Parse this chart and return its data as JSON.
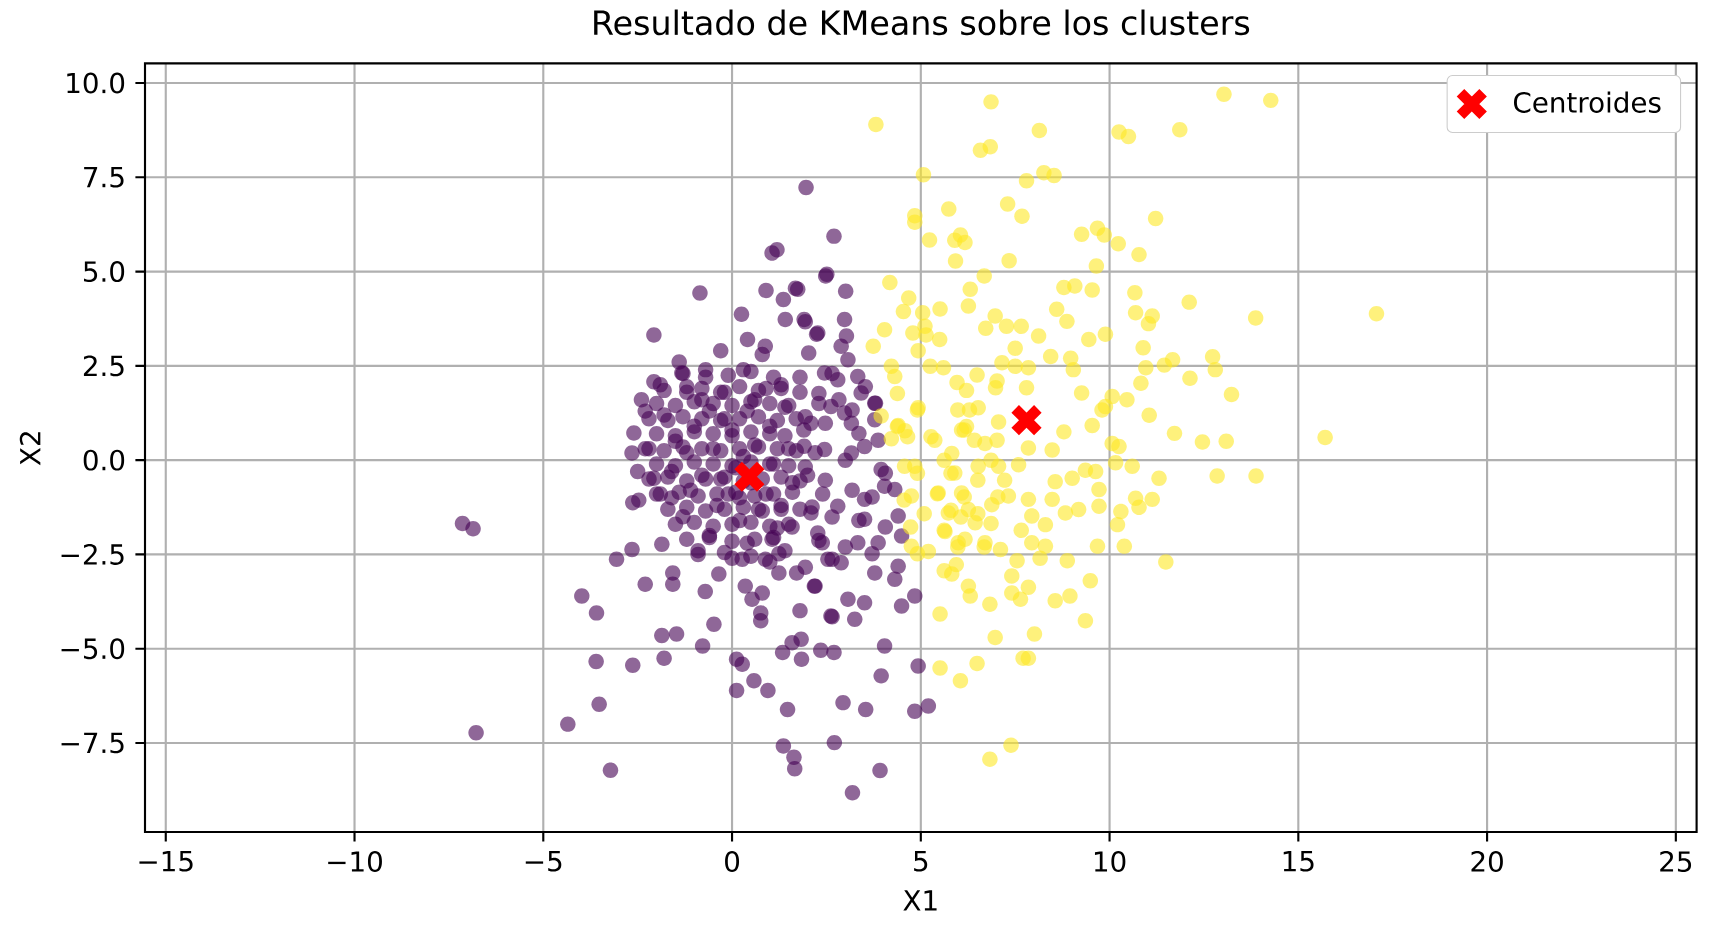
{
  "chart_data": {
    "type": "scatter",
    "title": "Resultado de KMeans sobre los clusters",
    "xlabel": "X1",
    "ylabel": "X2",
    "xlim": [
      -15.55,
      25.55
    ],
    "ylim": [
      -9.86,
      10.52
    ],
    "xticks": [
      {
        "value": -15,
        "label": "−15"
      },
      {
        "value": -10,
        "label": "−10"
      },
      {
        "value": -5,
        "label": "−5"
      },
      0,
      5,
      10,
      15,
      20,
      25
    ],
    "yticks": [
      {
        "value": -7.5,
        "label": "−7.5"
      },
      {
        "value": -5,
        "label": "−5.0"
      },
      {
        "value": -2.5,
        "label": "−2.5"
      },
      {
        "value": 0,
        "label": "0.0"
      },
      {
        "value": 2.5,
        "label": "2.5"
      },
      {
        "value": 5,
        "label": "5.0"
      },
      {
        "value": 7.5,
        "label": "7.5"
      },
      {
        "value": 10,
        "label": "10.0"
      }
    ],
    "grid": true,
    "legend": "top right",
    "marker": "circle",
    "series": [
      {
        "color": "#440154",
        "x": [
          1.96,
          2.7,
          1.06,
          1.19,
          -0.85,
          2.51,
          0.9,
          1.36,
          1.68,
          0.25,
          -2.07,
          0.41,
          0.88,
          1.41,
          1.94,
          2.24,
          2.03,
          -2.07,
          -1.33,
          -2.6,
          -2.65,
          -2.63,
          -2.07,
          -7.14,
          -6.86,
          -3.06,
          -2.65,
          -1.86,
          -2.3,
          -1.57,
          -1.57,
          -3.98,
          -3.59,
          -0.71,
          -0.35,
          -0.48,
          -1.86,
          -1.47,
          -0.78,
          -1.8,
          -3.6,
          -2.63,
          0.12,
          0.27,
          0.58,
          0.95,
          0.12,
          1.47,
          -3.52,
          -4.35,
          -6.78,
          -3.22,
          1.36,
          1.64,
          1.66,
          0.27,
          0.35,
          0.8,
          0.53,
          0.76,
          0.76,
          1.8,
          1.34,
          1.59,
          1.84,
          2.35,
          2.7,
          2.65,
          2.2,
          1.71,
          1.24,
          0.88,
          1.06,
          2.39,
          2.65,
          2.48,
          3.01,
          1.74,
          1.91,
          2.27,
          2.98,
          3.03,
          2.89,
          3.07,
          3.33,
          3.42,
          3.78,
          2.45,
          2.8,
          2.62,
          3.16,
          2.09,
          3.78,
          3.87,
          3.51,
          2.98,
          1.91,
          2.45,
          3.16,
          3.95,
          4.04,
          4.31,
          3.51,
          2.8,
          2.09,
          4.4,
          3.51,
          2.27,
          4.49,
          3.87,
          3.33,
          2.54,
          2.89,
          3.78,
          4.4,
          4.31,
          2.18,
          3.07,
          3.51,
          4.49,
          4.84,
          2.62,
          3.25,
          1.83,
          4.04,
          4.93,
          3.95,
          2.94,
          3.54,
          4.84,
          5.2,
          2.71,
          3.92,
          3.19,
          -1.8,
          -1.5,
          -1.6,
          -1.2,
          -1.0,
          -1.1,
          -1.3,
          -0.7,
          -0.6,
          -0.5,
          -0.8,
          -0.4,
          -0.6,
          -0.2,
          0.0,
          0.1,
          -0.1,
          0.2,
          0.3,
          0.4,
          0.6,
          0.5,
          0.7,
          0.4,
          0.9,
          1.0,
          1.1,
          0.9,
          1.2,
          1.4,
          1.5,
          1.6,
          1.4,
          1.8,
          1.9,
          2.0,
          1.8,
          -2.2,
          -2.0,
          -1.9,
          -0.3,
          0.8,
          -1.4,
          2.3,
          2.4,
          -2.3,
          0.0,
          -0.9,
          1.0,
          2.2,
          -1.2,
          -0.3,
          0.3,
          -0.8,
          0.6,
          0.2,
          -1.6,
          1.3,
          -0.2,
          1.3,
          -1.3,
          -0.7,
          -0.1,
          0.5,
          1.1,
          -1.8,
          -1.2,
          -0.8,
          -0.3,
          0.2,
          0.7,
          1.3,
          1.8,
          -2.0,
          -1.5,
          -1.0,
          -0.5,
          0.0,
          0.5,
          1.0,
          1.5,
          -2.2,
          -1.7,
          -1.3,
          -0.8,
          -0.3,
          0.2,
          0.7,
          1.2,
          1.7,
          -2.0,
          -1.5,
          -1.0,
          -0.5,
          0.0,
          0.5,
          1.0,
          1.4,
          -2.3,
          -1.8,
          -1.3,
          -0.8,
          -0.3,
          0.2,
          0.7,
          1.2,
          1.7,
          -2.0,
          -1.5,
          -1.0,
          -0.5,
          0.0,
          0.5,
          1.0,
          1.5,
          -2.2,
          -1.7,
          -1.2,
          -0.7,
          -0.2,
          0.3,
          0.8,
          1.3,
          1.8,
          -1.9,
          -1.4,
          -0.9,
          -0.4,
          0.1,
          0.6,
          1.1,
          1.6,
          -1.7,
          -1.2,
          -0.7,
          -0.2,
          0.3,
          0.8,
          1.3,
          -1.5,
          -1.0,
          -0.5,
          0.0,
          0.5,
          1.0,
          1.5,
          -1.2,
          -0.6,
          0.0,
          0.6,
          1.1,
          -0.9,
          -0.2,
          0.5,
          2.65,
          3.53,
          2.3,
          2.83,
          3.18,
          1.94,
          2.47,
          3.36,
          3.8,
          3.0,
          4.06,
          1.94,
          2.47,
          3.18,
          3.71,
          2.12,
          2.65,
          3.36,
          4.06,
          1.59,
          2.3,
          3.0,
          3.71,
          1.24,
          1.94,
          -2.47,
          -2.4,
          -2.5
        ],
        "values": [
          7.23,
          5.94,
          5.49,
          5.58,
          4.43,
          4.93,
          4.5,
          4.26,
          4.56,
          3.87,
          3.32,
          3.2,
          3.02,
          3.73,
          3.67,
          3.34,
          2.84,
          2.08,
          2.31,
          0.72,
          0.19,
          -1.13,
          -0.48,
          -1.68,
          -1.82,
          -2.63,
          -2.37,
          -2.23,
          -3.29,
          -2.99,
          -3.29,
          -3.6,
          -4.05,
          -3.48,
          -3.02,
          -4.35,
          -4.65,
          -4.61,
          -4.93,
          -5.25,
          -5.34,
          -5.44,
          -5.28,
          -5.41,
          -5.85,
          -6.11,
          -6.11,
          -6.61,
          -6.47,
          -7.0,
          -7.23,
          -8.22,
          -7.58,
          -7.88,
          -8.18,
          -2.63,
          -3.34,
          -3.52,
          -3.69,
          -4.05,
          -4.26,
          -3.99,
          -5.1,
          -4.84,
          -5.28,
          -5.04,
          -5.1,
          -4.15,
          -3.34,
          -2.99,
          -2.99,
          -2.63,
          -2.1,
          -2.19,
          -2.63,
          4.88,
          4.48,
          4.53,
          3.73,
          3.37,
          3.73,
          3.29,
          3.02,
          2.66,
          2.22,
          1.78,
          1.51,
          2.31,
          2.13,
          1.42,
          0.98,
          0.98,
          1.07,
          0.53,
          0.36,
          1.25,
          0.37,
          0.28,
          0.19,
          -0.25,
          -0.69,
          -0.78,
          -1.04,
          -1.22,
          -1.4,
          -1.48,
          -1.57,
          -1.93,
          -2.01,
          -2.19,
          -2.19,
          -2.63,
          -2.72,
          -2.99,
          -2.81,
          -3.16,
          -3.34,
          -3.69,
          -3.78,
          -3.87,
          -3.6,
          -4.13,
          -4.22,
          -4.75,
          -4.93,
          -5.46,
          -5.72,
          -6.43,
          -6.61,
          -6.66,
          -6.52,
          -7.49,
          -8.23,
          -8.82,
          1.2,
          0.5,
          -0.3,
          1.8,
          0.9,
          -0.8,
          -1.5,
          2.2,
          1.3,
          0.3,
          -0.4,
          -1.2,
          -2.0,
          1.8,
          0.8,
          -0.2,
          -0.9,
          -1.6,
          2.4,
          1.3,
          0.4,
          -0.6,
          -1.3,
          -2.2,
          1.9,
          0.9,
          -0.1,
          -0.9,
          -1.8,
          1.4,
          0.3,
          -0.6,
          -2.4,
          2.2,
          0.8,
          -0.4,
          -1.3,
          0.3,
          -0.9,
          2.0,
          2.9,
          2.8,
          2.6,
          1.5,
          -0.9,
          1.3,
          -2.6,
          -2.4,
          -2.7,
          0.2,
          0.2,
          -0.5,
          0.1,
          1.6,
          1.6,
          -1.0,
          -1.0,
          -1.2,
          1.1,
          2.0,
          2.3,
          2.4,
          2.25,
          2.35,
          2.2,
          1.85,
          1.95,
          1.9,
          1.8,
          1.95,
          1.85,
          1.9,
          1.8,
          1.5,
          1.45,
          1.55,
          1.5,
          1.45,
          1.55,
          1.5,
          1.45,
          1.1,
          1.05,
          1.15,
          1.1,
          1.05,
          1.1,
          1.15,
          1.05,
          1.1,
          0.7,
          0.65,
          0.75,
          0.7,
          0.65,
          0.75,
          0.7,
          0.65,
          0.3,
          0.25,
          0.35,
          0.3,
          0.25,
          0.3,
          0.35,
          0.3,
          0.25,
          -0.1,
          -0.15,
          -0.05,
          -0.1,
          -0.15,
          -0.05,
          -0.1,
          -0.15,
          -0.5,
          -0.45,
          -0.55,
          -0.5,
          -0.45,
          -0.55,
          -0.5,
          -0.45,
          -0.55,
          -0.9,
          -0.85,
          -0.95,
          -0.9,
          -0.85,
          -0.95,
          -0.9,
          -0.85,
          -1.3,
          -1.25,
          -1.35,
          -1.3,
          -1.25,
          -1.35,
          -1.3,
          -1.7,
          -1.65,
          -1.75,
          -1.7,
          -1.65,
          -1.75,
          -1.7,
          -2.1,
          -2.05,
          -2.15,
          -2.1,
          -2.05,
          -2.5,
          -2.45,
          -2.55,
          2.3,
          1.95,
          1.77,
          1.6,
          1.33,
          1.15,
          0.98,
          0.71,
          1.51,
          0.0,
          -0.35,
          -0.18,
          -0.53,
          -0.8,
          -0.98,
          -1.24,
          -1.51,
          -1.6,
          -1.77,
          -1.77,
          -2.13,
          -2.3,
          -2.48,
          -2.48,
          -2.84,
          -1.06,
          1.6,
          -0.3
        ]
      },
      {
        "color": "#fde725",
        "x": [
          3.81,
          6.86,
          8.14,
          6.58,
          6.84,
          10.25,
          10.5,
          11.86,
          13.03,
          14.27,
          5.07,
          7.8,
          8.26,
          8.53,
          4.84,
          4.84,
          5.74,
          7.3,
          7.68,
          5.23,
          5.9,
          6.05,
          6.17,
          5.92,
          7.34,
          9.26,
          9.68,
          9.86,
          10.23,
          10.78,
          11.22,
          9.65,
          6.68,
          4.18,
          6.31,
          6.26,
          4.68,
          4.54,
          5.05,
          5.51,
          8.79,
          9.08,
          9.54,
          10.67,
          12.11,
          13.87,
          8.6,
          8.87,
          10.69,
          11.13,
          11.03,
          6.97,
          6.72,
          7.27,
          7.66,
          4.04,
          4.79,
          5.11,
          5.14,
          5.5,
          4.93,
          8.12,
          9.45,
          9.89,
          7.5,
          3.74,
          4.22,
          4.31,
          5.25,
          5.6,
          6.49,
          7.02,
          6.98,
          7.15,
          7.5,
          7.85,
          8.44,
          8.97,
          9.04,
          10.89,
          10.96,
          10.83,
          11.45,
          11.67,
          12.13,
          12.73,
          12.8,
          13.23,
          5.96,
          6.21,
          7.8,
          9.26,
          10.07,
          10.46,
          4.93,
          3.95,
          6.29,
          6.52,
          6.08,
          6.21,
          7.06,
          8.79,
          9.54,
          9.8,
          9.89,
          11.05,
          11.72,
          12.46,
          13.09,
          4.4,
          4.58,
          4.22,
          5.37,
          5.82,
          6.7,
          7.02,
          7.85,
          8.48,
          10.07,
          10.25,
          17.07,
          15.71,
          10.16,
          10.6,
          4.57,
          4.84,
          5.9,
          6.52,
          7.06,
          7.59,
          8.56,
          9.01,
          9.36,
          9.63,
          11.31,
          12.85,
          13.88,
          4.75,
          5.46,
          6.08,
          6.88,
          7.32,
          7.85,
          8.48,
          9.72,
          10.69,
          11.13,
          5.73,
          6.26,
          6.44,
          7.94,
          8.3,
          8.83,
          9.18,
          9.72,
          10.3,
          10.78,
          10.21,
          5.64,
          6.17,
          4.75,
          5.2,
          5.99,
          6.7,
          7.11,
          7.94,
          8.3,
          9.68,
          10.39,
          5.94,
          5.82,
          7.55,
          8.16,
          8.88,
          11.49,
          7.41,
          7.85,
          7.64,
          7.41,
          6.26,
          6.31,
          9.49,
          6.83,
          8.56,
          8.95,
          9.36,
          5.51,
          6.97,
          8.01,
          7.71,
          7.85,
          5.51,
          6.49,
          6.05,
          7.39,
          6.83,
          4.38,
          4.65,
          5.27,
          6.15,
          6.42,
          6.86,
          5.62,
          4.91,
          5.8,
          6.51,
          7.22,
          5.44,
          6.15,
          7.04,
          4.56,
          5.09,
          5.8,
          6.51,
          4.73,
          5.62,
          6.06,
          6.86,
          7.66,
          5.98,
          6.68,
          4.91,
          5.62,
          4.91,
          5.98,
          4.38
        ],
        "values": [
          8.9,
          9.5,
          8.74,
          8.22,
          8.31,
          8.7,
          8.58,
          8.76,
          9.7,
          9.54,
          7.57,
          7.41,
          7.62,
          7.55,
          6.48,
          6.31,
          6.66,
          6.79,
          6.47,
          5.84,
          5.83,
          5.97,
          5.77,
          5.28,
          5.29,
          5.99,
          6.15,
          5.97,
          5.74,
          5.45,
          6.41,
          5.15,
          4.88,
          4.71,
          4.53,
          4.09,
          4.3,
          3.94,
          3.91,
          4.01,
          4.58,
          4.62,
          4.51,
          4.44,
          4.19,
          3.77,
          4.0,
          3.68,
          3.91,
          3.82,
          3.62,
          3.82,
          3.5,
          3.55,
          3.55,
          3.46,
          3.37,
          3.55,
          3.32,
          3.2,
          2.9,
          3.29,
          3.2,
          3.34,
          2.97,
          3.02,
          2.49,
          2.22,
          2.49,
          2.45,
          2.26,
          2.1,
          1.92,
          2.58,
          2.49,
          2.45,
          2.75,
          2.7,
          2.4,
          2.98,
          2.45,
          2.04,
          2.52,
          2.66,
          2.17,
          2.74,
          2.4,
          1.74,
          2.06,
          1.85,
          1.92,
          1.78,
          1.69,
          1.6,
          1.39,
          1.17,
          1.33,
          1.39,
          0.8,
          0.89,
          1.01,
          0.75,
          0.92,
          1.33,
          1.42,
          1.19,
          0.71,
          0.48,
          0.5,
          0.92,
          0.78,
          0.57,
          0.53,
          0.18,
          0.44,
          0.53,
          0.32,
          0.27,
          0.44,
          0.36,
          3.88,
          0.6,
          -0.07,
          -0.16,
          -0.16,
          -0.16,
          -0.34,
          -0.16,
          -0.16,
          -0.12,
          -0.57,
          -0.48,
          -0.27,
          -0.3,
          -0.48,
          -0.42,
          -0.42,
          -0.95,
          -0.87,
          -0.87,
          -1.18,
          -0.95,
          -1.04,
          -1.04,
          -0.78,
          -1.01,
          -1.04,
          -1.4,
          -1.31,
          -1.66,
          -1.48,
          -1.71,
          -1.4,
          -1.31,
          -1.22,
          -1.36,
          -1.25,
          -1.71,
          -1.89,
          -2.1,
          -2.28,
          -2.42,
          -2.19,
          -2.19,
          -2.37,
          -2.19,
          -2.28,
          -2.28,
          -2.28,
          -2.77,
          -3.02,
          -2.67,
          -2.6,
          -2.67,
          -2.7,
          -3.07,
          -3.37,
          -3.69,
          -3.52,
          -3.34,
          -3.6,
          -3.2,
          -3.82,
          -3.73,
          -3.6,
          -4.26,
          -4.08,
          -4.7,
          -4.61,
          -5.25,
          -5.25,
          -5.51,
          -5.39,
          -5.85,
          -7.56,
          -7.93,
          0.89,
          0.62,
          0.62,
          0.8,
          0.53,
          0.0,
          0.0,
          -0.35,
          -0.35,
          -0.53,
          -0.53,
          -0.89,
          -0.98,
          -0.98,
          -1.06,
          -1.42,
          -1.33,
          -1.42,
          -1.77,
          -1.86,
          -1.51,
          -1.68,
          -1.86,
          -2.3,
          -2.3,
          -2.48,
          -2.93,
          1.33,
          1.33,
          1.77
        ]
      },
      {
        "name": "Centroides",
        "color": "#ff0000",
        "marker": "cross",
        "x": [
          0.46,
          7.8
        ],
        "values": [
          -0.44,
          1.06
        ]
      }
    ]
  }
}
